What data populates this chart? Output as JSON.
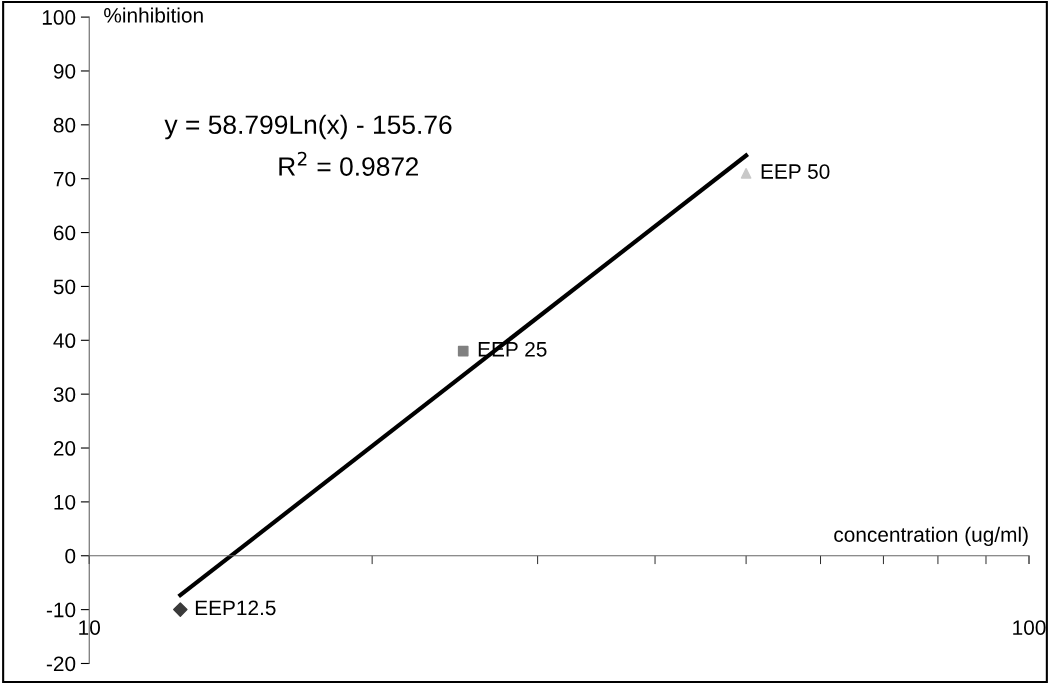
{
  "chart_data": {
    "type": "scatter",
    "xlabel": "concentration (ug/ml)",
    "ylabel": "%inhibition",
    "log": "x",
    "xlim": [
      10,
      100
    ],
    "xticks": [
      10,
      100
    ],
    "ylim": [
      -20,
      100
    ],
    "yticks": [
      -20,
      -10,
      0,
      10,
      20,
      30,
      40,
      50,
      60,
      70,
      80,
      90,
      100
    ],
    "annotations": [
      "y = 58.799Ln(x) - 155.76",
      "R$^{2}$ = 0.9872"
    ],
    "series": [
      {
        "name": "EEP12.5",
        "color": "#3a3a3a",
        "marker": "diamond",
        "x": [
          12.5
        ],
        "values": [
          -10
        ]
      },
      {
        "name": "EEP 25",
        "color": "#808080",
        "marker": "square",
        "x": [
          25
        ],
        "values": [
          38
        ]
      },
      {
        "name": "EEP 50",
        "color": "#c8c8c8",
        "marker": "triangle",
        "x": [
          50
        ],
        "values": [
          71
        ]
      },
      {
        "type": "line",
        "color": "#000000",
        "line_style": "solid",
        "x": [
          12.5,
          50
        ],
        "values": [
          -7.3,
          74.3
        ]
      }
    ]
  }
}
